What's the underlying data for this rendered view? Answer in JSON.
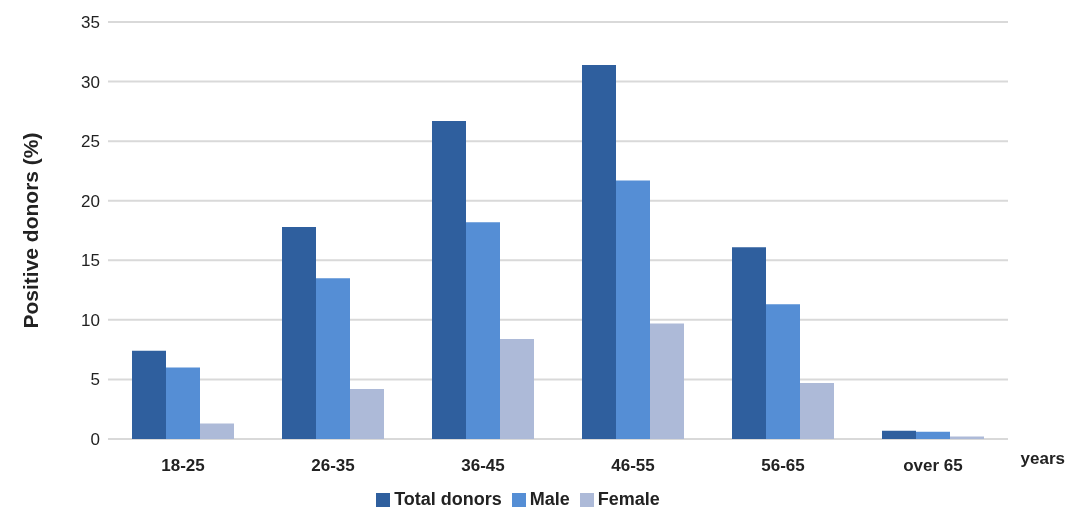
{
  "chart_data": {
    "type": "bar",
    "ylabel": "Positive donors (%)",
    "xlabel": "years",
    "categories": [
      "18-25",
      "26-35",
      "36-45",
      "46-55",
      "56-65",
      "over 65"
    ],
    "series": [
      {
        "name": "Total donors",
        "color": "#2f5f9e",
        "values": [
          7.4,
          17.8,
          26.7,
          31.4,
          16.1,
          0.7
        ]
      },
      {
        "name": "Male",
        "color": "#558ed5",
        "values": [
          6.0,
          13.5,
          18.2,
          21.7,
          11.3,
          0.6
        ]
      },
      {
        "name": "Female",
        "color": "#adbad8",
        "values": [
          1.3,
          4.2,
          8.4,
          9.7,
          4.7,
          0.2
        ]
      }
    ],
    "ylim": [
      0,
      35
    ],
    "yticks": [
      0,
      5,
      10,
      15,
      20,
      25,
      30,
      35
    ],
    "grid": "y",
    "legend": "bottom"
  }
}
